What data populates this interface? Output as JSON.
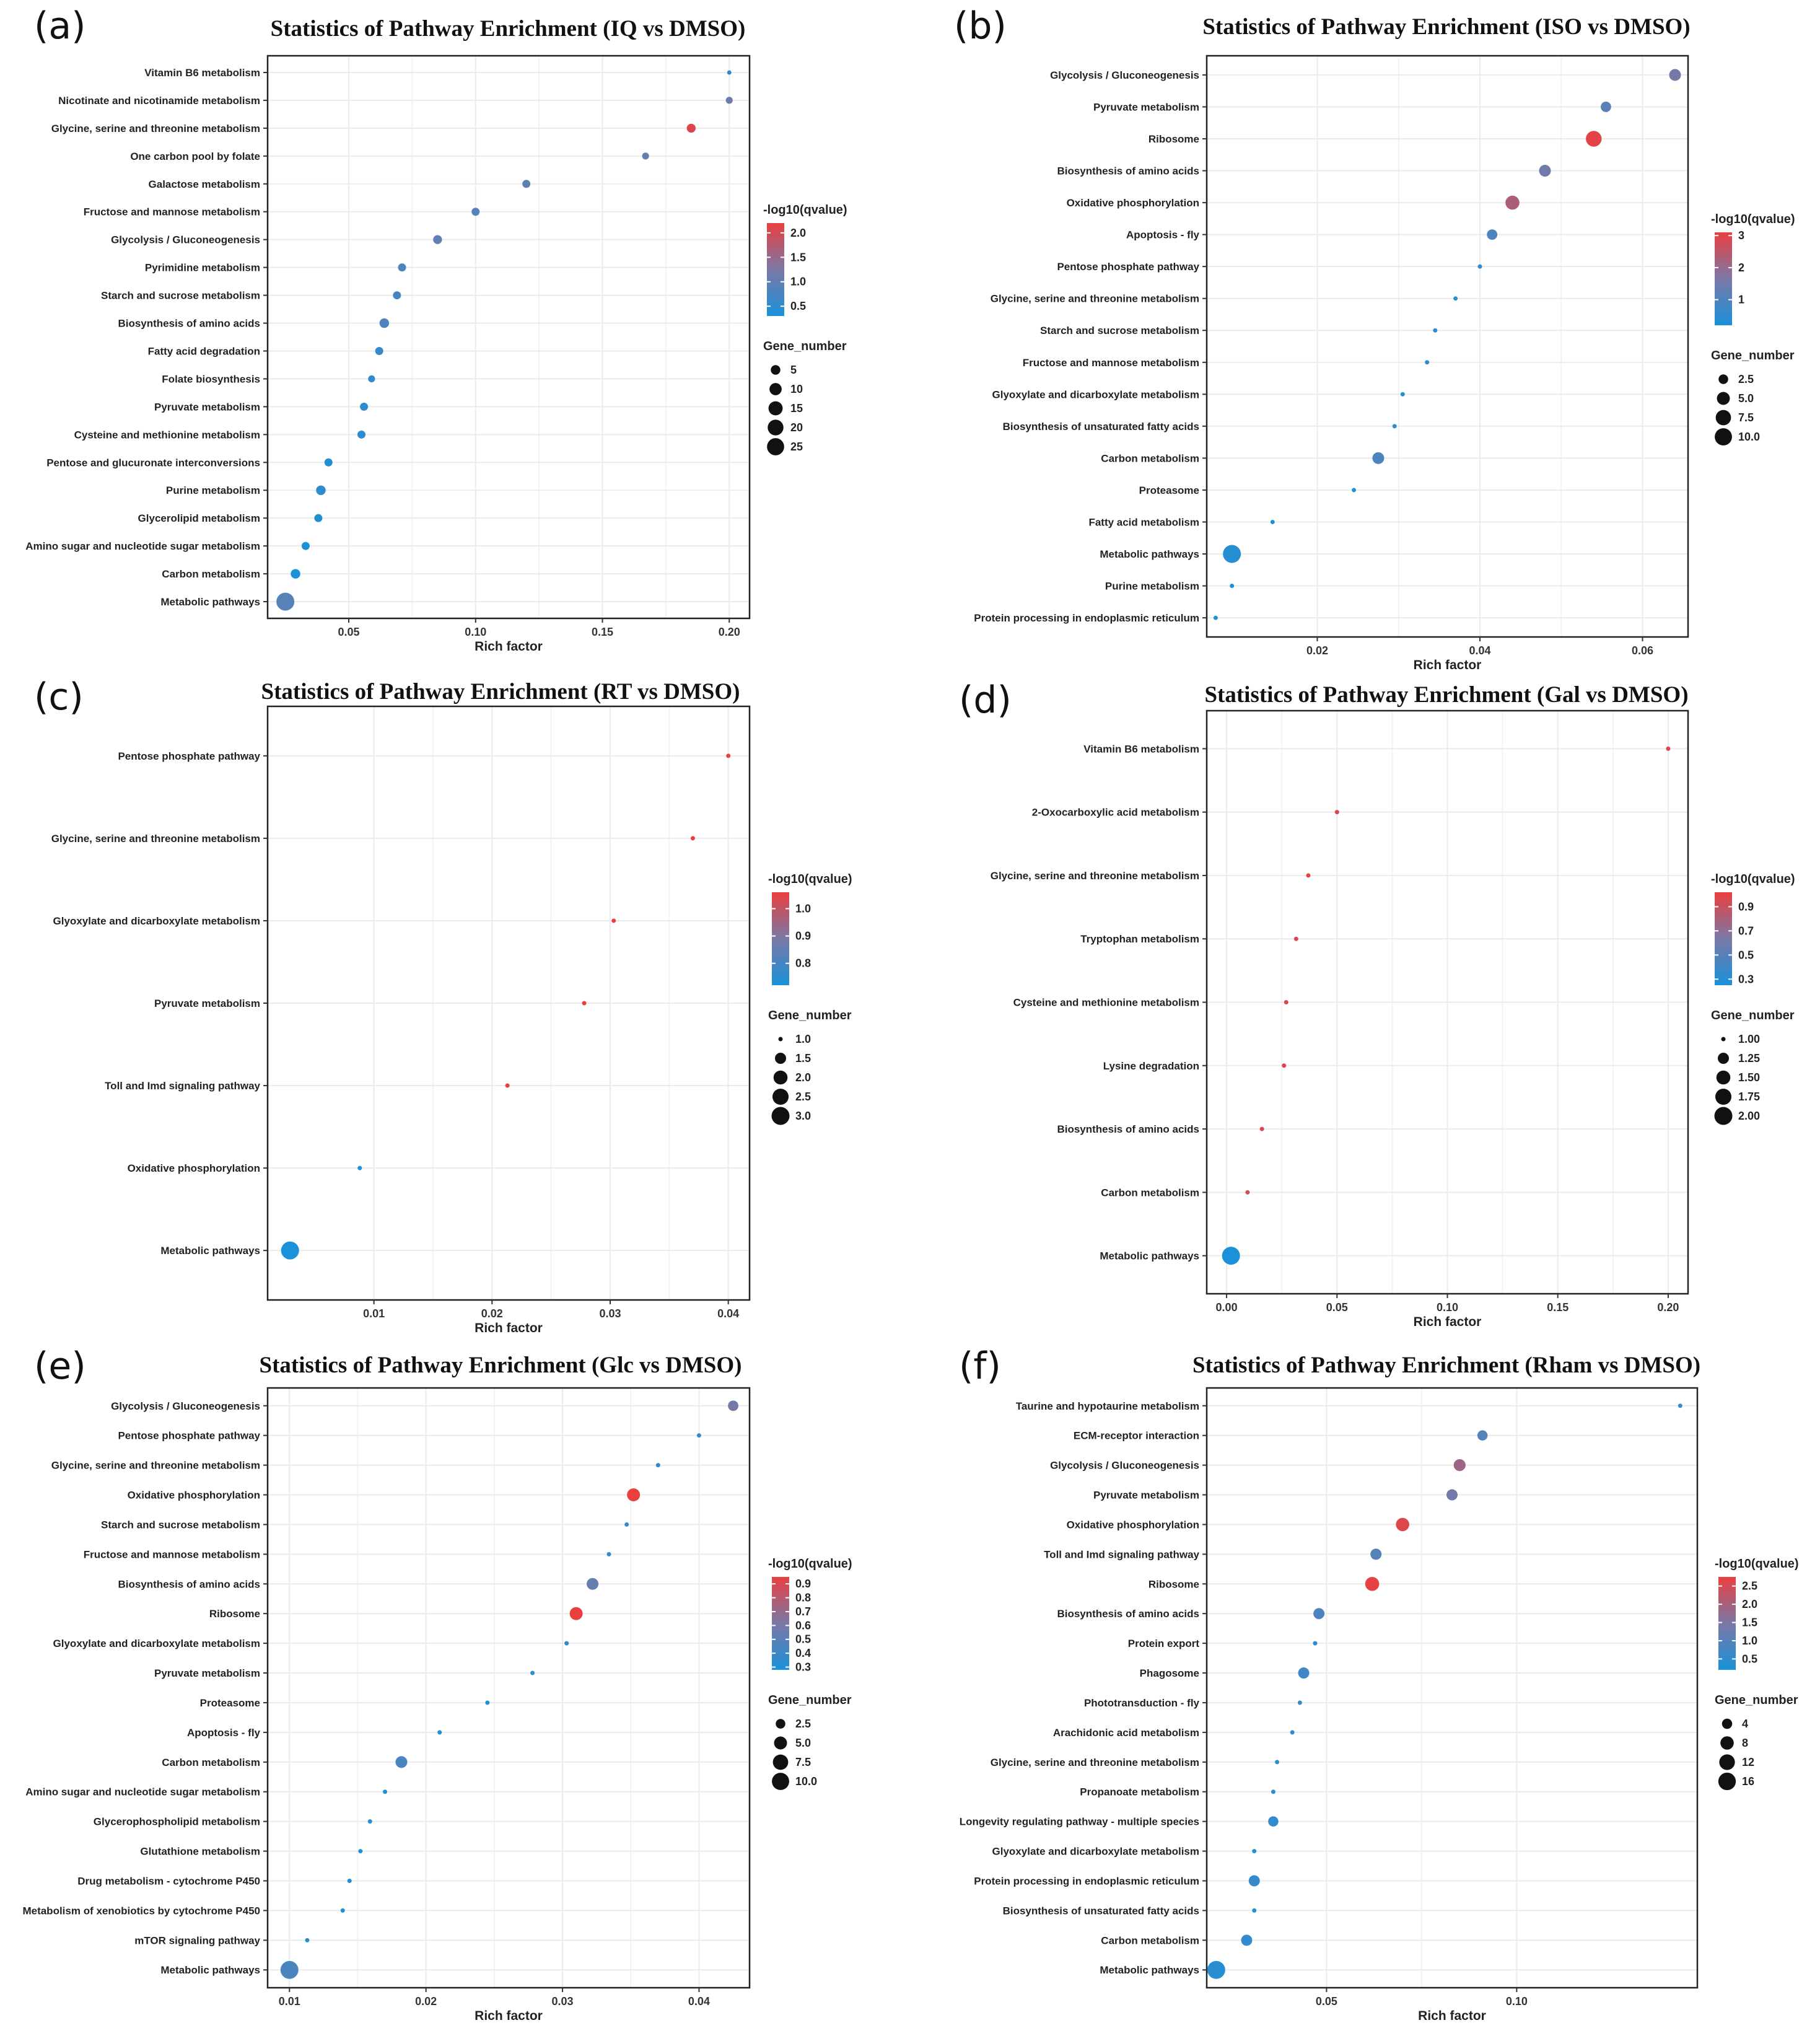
{
  "figure": {
    "colors": {
      "low": "#1a91d9",
      "mid": "#7a78a6",
      "high": "#ea3f3f"
    }
  },
  "chart_data": [
    {
      "panel": "(a)",
      "type": "scatter",
      "title": "Statistics of Pathway Enrichment (IQ vs DMSO)",
      "xlabel": "Rich factor",
      "xlim": [
        0.018,
        0.208
      ],
      "xticks": [
        0.05,
        0.1,
        0.15,
        0.2
      ],
      "xtick_labels": [
        "0.05",
        "0.10",
        "0.15",
        "0.20"
      ],
      "categories": [
        "Vitamin B6 metabolism",
        "Nicotinate and nicotinamide metabolism",
        "Glycine, serine and threonine metabolism",
        "One carbon pool by folate",
        "Galactose metabolism",
        "Fructose and mannose metabolism",
        "Glycolysis / Gluconeogenesis",
        "Pyrimidine metabolism",
        "Starch and sucrose metabolism",
        "Biosynthesis of amino acids",
        "Fatty acid degradation",
        "Folate biosynthesis",
        "Pyruvate metabolism",
        "Cysteine and methionine metabolism",
        "Pentose and glucuronate interconversions",
        "Purine metabolism",
        "Glycerolipid metabolism",
        "Amino sugar and nucleotide sugar metabolism",
        "Carbon metabolism",
        "Metabolic pathways"
      ],
      "rich_factor": [
        0.2,
        0.2,
        0.185,
        0.167,
        0.12,
        0.1,
        0.085,
        0.071,
        0.069,
        0.064,
        0.062,
        0.059,
        0.056,
        0.055,
        0.042,
        0.039,
        0.038,
        0.033,
        0.029,
        0.025
      ],
      "gene_number": [
        1,
        2,
        4,
        2,
        3,
        3,
        4,
        3,
        3,
        5,
        3,
        2,
        3,
        3,
        3,
        5,
        3,
        3,
        5,
        28
      ],
      "qvalue_log10": [
        0.6,
        1.1,
        2.1,
        1.0,
        1.0,
        0.9,
        1.0,
        0.8,
        0.7,
        0.8,
        0.6,
        0.5,
        0.5,
        0.5,
        0.4,
        0.5,
        0.4,
        0.3,
        0.3,
        0.9
      ],
      "color_legend": {
        "title": "-log10(qvalue)",
        "min": 0.3,
        "max": 2.2,
        "ticks": [
          2.0,
          1.5,
          1.0,
          0.5
        ],
        "labels": [
          "2.0",
          "1.5",
          "1.0",
          "0.5"
        ]
      },
      "size_legend": {
        "title": "Gene_number",
        "values": [
          5,
          10,
          15,
          20,
          25
        ],
        "labels": [
          "5",
          "10",
          "15",
          "20",
          "25"
        ],
        "range": [
          1,
          28
        ]
      }
    },
    {
      "panel": "(b)",
      "type": "scatter",
      "title": "Statistics of Pathway Enrichment (ISO vs DMSO)",
      "xlabel": "Rich factor",
      "xlim": [
        0.0064,
        0.0656
      ],
      "xticks": [
        0.02,
        0.04,
        0.06
      ],
      "xtick_labels": [
        "0.02",
        "0.04",
        "0.06"
      ],
      "categories": [
        "Glycolysis / Gluconeogenesis",
        "Pyruvate metabolism",
        "Ribosome",
        "Biosynthesis of amino acids",
        "Oxidative phosphorylation",
        "Apoptosis - fly",
        "Pentose phosphate pathway",
        "Glycine, serine and threonine metabolism",
        "Starch and sucrose metabolism",
        "Fructose and mannose metabolism",
        "Glyoxylate and dicarboxylate metabolism",
        "Biosynthesis of unsaturated fatty acids",
        "Carbon metabolism",
        "Proteasome",
        "Fatty acid metabolism",
        "Metabolic pathways",
        "Purine metabolism",
        "Protein processing in endoplasmic reticulum"
      ],
      "rich_factor": [
        0.064,
        0.0555,
        0.054,
        0.048,
        0.044,
        0.0415,
        0.04,
        0.037,
        0.0345,
        0.0335,
        0.0305,
        0.0295,
        0.0275,
        0.0245,
        0.0145,
        0.0095,
        0.0095,
        0.0075
      ],
      "gene_number": [
        4,
        3,
        8,
        4,
        6,
        3,
        1,
        1,
        1,
        1,
        1,
        1,
        4,
        1,
        1,
        11,
        1,
        1
      ],
      "qvalue_log10": [
        1.6,
        1.2,
        3.0,
        1.5,
        2.3,
        1.0,
        0.6,
        0.5,
        0.5,
        0.5,
        0.4,
        0.4,
        1.0,
        0.3,
        0.2,
        0.4,
        0.2,
        0.2
      ],
      "color_legend": {
        "title": "-log10(qvalue)",
        "min": 0.2,
        "max": 3.1,
        "ticks": [
          3,
          2,
          1
        ],
        "labels": [
          "3",
          "2",
          "1"
        ]
      },
      "size_legend": {
        "title": "Gene_number",
        "values": [
          2.5,
          5.0,
          7.5,
          10.0
        ],
        "labels": [
          "2.5",
          "5.0",
          "7.5",
          "10.0"
        ],
        "range": [
          1,
          11
        ]
      }
    },
    {
      "panel": "(c)",
      "type": "scatter",
      "title": "Statistics of Pathway Enrichment (RT vs DMSO)",
      "xlabel": "Rich factor",
      "xlim": [
        0.001,
        0.0418
      ],
      "xticks": [
        0.01,
        0.02,
        0.03,
        0.04
      ],
      "xtick_labels": [
        "0.01",
        "0.02",
        "0.03",
        "0.04"
      ],
      "categories": [
        "Pentose phosphate pathway",
        "Glycine, serine and threonine metabolism",
        "Glyoxylate and dicarboxylate metabolism",
        "Pyruvate metabolism",
        "Toll and Imd signaling pathway",
        "Oxidative phosphorylation",
        "Metabolic pathways"
      ],
      "rich_factor": [
        0.04,
        0.037,
        0.0303,
        0.0278,
        0.0213,
        0.0088,
        0.0029
      ],
      "gene_number": [
        1,
        1,
        1,
        1,
        1,
        1,
        3
      ],
      "qvalue_log10": [
        1.06,
        1.06,
        1.06,
        1.06,
        1.06,
        0.72,
        0.72
      ],
      "color_legend": {
        "title": "-log10(qvalue)",
        "min": 0.72,
        "max": 1.06,
        "ticks": [
          1.0,
          0.9,
          0.8
        ],
        "labels": [
          "1.0",
          "0.9",
          "0.8"
        ]
      },
      "size_legend": {
        "title": "Gene_number",
        "values": [
          1.0,
          1.5,
          2.0,
          2.5,
          3.0
        ],
        "labels": [
          "1.0",
          "1.5",
          "2.0",
          "2.5",
          "3.0"
        ],
        "range": [
          1,
          3
        ]
      }
    },
    {
      "panel": "(d)",
      "type": "scatter",
      "title": "Statistics of Pathway Enrichment (Gal vs DMSO)",
      "xlabel": "Rich factor",
      "xlim": [
        -0.009,
        0.209
      ],
      "xticks": [
        0.0,
        0.05,
        0.1,
        0.15,
        0.2
      ],
      "xtick_labels": [
        "0.00",
        "0.05",
        "0.10",
        "0.15",
        "0.20"
      ],
      "categories": [
        "Vitamin B6 metabolism",
        "2-Oxocarboxylic acid metabolism",
        "Glycine, serine and threonine metabolism",
        "Tryptophan metabolism",
        "Cysteine and methionine metabolism",
        "Lysine degradation",
        "Biosynthesis of amino acids",
        "Carbon metabolism",
        "Metabolic pathways"
      ],
      "rich_factor": [
        0.2,
        0.05,
        0.037,
        0.0315,
        0.027,
        0.026,
        0.016,
        0.0095,
        0.002
      ],
      "gene_number": [
        1,
        1,
        1,
        1,
        1,
        1,
        1,
        1,
        2
      ],
      "qvalue_log10": [
        0.98,
        0.98,
        0.98,
        0.98,
        0.98,
        0.98,
        0.98,
        0.9,
        0.25
      ],
      "color_legend": {
        "title": "-log10(qvalue)",
        "min": 0.25,
        "max": 1.02,
        "ticks": [
          0.9,
          0.7,
          0.5,
          0.3
        ],
        "labels": [
          "0.9",
          "0.7",
          "0.5",
          "0.3"
        ]
      },
      "size_legend": {
        "title": "Gene_number",
        "values": [
          1.0,
          1.25,
          1.5,
          1.75,
          2.0
        ],
        "labels": [
          "1.00",
          "1.25",
          "1.50",
          "1.75",
          "2.00"
        ],
        "range": [
          1,
          2
        ]
      }
    },
    {
      "panel": "(e)",
      "type": "scatter",
      "title": "Statistics of Pathway Enrichment (Glc vs DMSO)",
      "xlabel": "Rich factor",
      "xlim": [
        0.0084,
        0.0437
      ],
      "xticks": [
        0.01,
        0.02,
        0.03,
        0.04
      ],
      "xtick_labels": [
        "0.01",
        "0.02",
        "0.03",
        "0.04"
      ],
      "categories": [
        "Glycolysis / Gluconeogenesis",
        "Pentose phosphate pathway",
        "Glycine, serine and threonine metabolism",
        "Oxidative phosphorylation",
        "Starch and sucrose metabolism",
        "Fructose and mannose metabolism",
        "Biosynthesis of amino acids",
        "Ribosome",
        "Glyoxylate and dicarboxylate metabolism",
        "Pyruvate metabolism",
        "Proteasome",
        "Apoptosis - fly",
        "Carbon metabolism",
        "Amino sugar and nucleotide sugar metabolism",
        "Glycerophospholipid metabolism",
        "Glutathione metabolism",
        "Drug metabolism - cytochrome P450",
        "Metabolism of xenobiotics by cytochrome P450",
        "mTOR signaling pathway",
        "Metabolic pathways"
      ],
      "rich_factor": [
        0.0425,
        0.04,
        0.037,
        0.0352,
        0.0347,
        0.0334,
        0.0322,
        0.031,
        0.0303,
        0.0278,
        0.0245,
        0.021,
        0.0182,
        0.017,
        0.0159,
        0.0152,
        0.0144,
        0.0139,
        0.0113,
        0.01
      ],
      "gene_number": [
        3,
        1,
        1,
        5,
        1,
        1,
        4,
        5,
        1,
        1,
        1,
        1,
        4,
        1,
        1,
        1,
        1,
        1,
        1,
        11
      ],
      "qvalue_log10": [
        0.6,
        0.4,
        0.4,
        0.95,
        0.4,
        0.4,
        0.55,
        0.95,
        0.35,
        0.35,
        0.3,
        0.3,
        0.45,
        0.3,
        0.3,
        0.3,
        0.3,
        0.3,
        0.3,
        0.45
      ],
      "color_legend": {
        "title": "-log10(qvalue)",
        "min": 0.28,
        "max": 0.95,
        "ticks": [
          0.9,
          0.8,
          0.7,
          0.6,
          0.5,
          0.4,
          0.3
        ],
        "labels": [
          "0.9",
          "0.8",
          "0.7",
          "0.6",
          "0.5",
          "0.4",
          "0.3"
        ]
      },
      "size_legend": {
        "title": "Gene_number",
        "values": [
          2.5,
          5.0,
          7.5,
          10.0
        ],
        "labels": [
          "2.5",
          "5.0",
          "7.5",
          "10.0"
        ],
        "range": [
          1,
          11
        ]
      }
    },
    {
      "panel": "(f)",
      "type": "scatter",
      "title": "Statistics of Pathway Enrichment (Rham vs DMSO)",
      "xlabel": "Rich factor",
      "xlim": [
        0.0185,
        0.1475
      ],
      "xticks": [
        0.05,
        0.1
      ],
      "xtick_labels": [
        "0.05",
        "0.10"
      ],
      "categories": [
        "Taurine and hypotaurine metabolism",
        "ECM-receptor interaction",
        "Glycolysis / Gluconeogenesis",
        "Pyruvate metabolism",
        "Oxidative phosphorylation",
        "Toll and Imd signaling pathway",
        "Ribosome",
        "Biosynthesis of amino acids",
        "Protein export",
        "Phagosome",
        "Phototransduction - fly",
        "Arachidonic acid metabolism",
        "Glycine, serine and threonine metabolism",
        "Propanoate metabolism",
        "Longevity regulating pathway - multiple species",
        "Glyoxylate and dicarboxylate metabolism",
        "Protein processing in endoplasmic reticulum",
        "Biosynthesis of unsaturated fatty acids",
        "Carbon metabolism",
        "Metabolic pathways"
      ],
      "rich_factor": [
        0.143,
        0.091,
        0.085,
        0.083,
        0.07,
        0.063,
        0.062,
        0.048,
        0.047,
        0.044,
        0.043,
        0.041,
        0.037,
        0.036,
        0.036,
        0.031,
        0.031,
        0.031,
        0.029,
        0.021
      ],
      "gene_number": [
        1,
        4,
        6,
        5,
        8,
        5,
        9,
        5,
        1,
        5,
        1,
        1,
        1,
        1,
        4,
        1,
        5,
        1,
        5,
        17
      ],
      "qvalue_log10": [
        0.7,
        1.0,
        1.9,
        1.4,
        2.6,
        1.0,
        2.7,
        0.9,
        0.5,
        0.7,
        0.5,
        0.5,
        0.4,
        0.4,
        0.5,
        0.3,
        0.6,
        0.3,
        0.5,
        0.4
      ],
      "color_legend": {
        "title": "-log10(qvalue)",
        "min": 0.2,
        "max": 2.75,
        "ticks": [
          2.5,
          2.0,
          1.5,
          1.0,
          0.5
        ],
        "labels": [
          "2.5",
          "2.0",
          "1.5",
          "1.0",
          "0.5"
        ]
      },
      "size_legend": {
        "title": "Gene_number",
        "values": [
          4,
          8,
          12,
          16
        ],
        "labels": [
          "4",
          "8",
          "12",
          "16"
        ],
        "range": [
          1,
          17
        ]
      }
    }
  ]
}
